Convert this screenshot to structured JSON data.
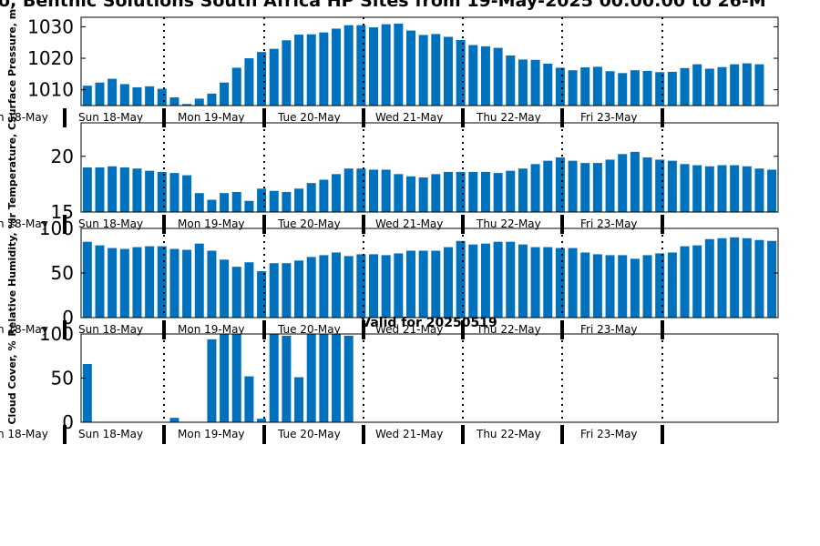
{
  "chart_data": {
    "title": "o, Benthic Solutions South Africa HP Sites from 19-May-2025 00:00:00 to 26-M",
    "subtitle": "Valid for 20250519",
    "day_labels": [
      "n 18-May",
      "Sun 18-May",
      "Mon 19-May",
      "Tue 20-May",
      "Wed 21-May",
      "Thu 22-May",
      "Fri 23-May"
    ],
    "bar_color": "#0072bd",
    "panels": [
      {
        "type": "bar",
        "ylabel": "Surface Pressure, m",
        "ylim": [
          1005,
          1033
        ],
        "yticks": [
          1010,
          1020,
          1030
        ],
        "values": [
          1011.3,
          1012.3,
          1013.5,
          1011.8,
          1010.8,
          1011.1,
          1010.3,
          1007.6,
          1005.5,
          1007.2,
          1008.8,
          1012.3,
          1017.0,
          1020.0,
          1022.0,
          1023.0,
          1025.7,
          1027.5,
          1027.6,
          1028.2,
          1029.4,
          1030.5,
          1030.5,
          1029.8,
          1030.8,
          1031.0,
          1028.8,
          1027.4,
          1027.7,
          1026.8,
          1025.8,
          1024.2,
          1023.8,
          1023.3,
          1020.9,
          1019.6,
          1019.5,
          1018.3,
          1017.0,
          1016.2,
          1017.1,
          1017.3,
          1015.9,
          1015.3,
          1016.2,
          1016.0,
          1015.6,
          1015.7,
          1016.9,
          1018.1,
          1016.7,
          1017.2,
          1018.1,
          1018.4,
          1018.1
        ]
      },
      {
        "type": "bar",
        "ylabel": "ir Temperature, C",
        "ylim": [
          15,
          23
        ],
        "yticks": [
          15,
          20
        ],
        "values": [
          19.0,
          19.0,
          19.1,
          19.0,
          18.9,
          18.7,
          18.6,
          18.5,
          18.3,
          16.7,
          16.1,
          16.7,
          16.8,
          16.0,
          17.1,
          16.9,
          16.8,
          17.1,
          17.6,
          17.9,
          18.4,
          18.9,
          18.9,
          18.8,
          18.8,
          18.4,
          18.2,
          18.1,
          18.4,
          18.6,
          18.6,
          18.6,
          18.6,
          18.5,
          18.7,
          18.9,
          19.3,
          19.6,
          19.9,
          19.6,
          19.4,
          19.4,
          19.7,
          20.2,
          20.4,
          19.9,
          19.7,
          19.6,
          19.3,
          19.2,
          19.1,
          19.2,
          19.2,
          19.1,
          18.9,
          18.8
        ]
      },
      {
        "type": "bar",
        "ylabel": "Relative Humidity, %",
        "ylim": [
          0,
          100
        ],
        "yticks": [
          0,
          50,
          100
        ],
        "values": [
          85,
          81,
          78,
          77,
          79,
          80,
          80,
          77,
          76,
          83,
          75,
          65,
          57,
          62,
          52,
          61,
          61,
          64,
          68,
          70,
          73,
          69,
          71,
          71,
          70,
          72,
          75,
          75,
          75,
          79,
          86,
          82,
          83,
          85,
          85,
          82,
          79,
          79,
          78,
          78,
          73,
          71,
          70,
          70,
          66,
          70,
          72,
          73,
          80,
          81,
          88,
          89,
          90,
          89,
          87,
          86
        ]
      },
      {
        "type": "bar",
        "ylabel": "Cloud Cover, %",
        "ylim": [
          0,
          100
        ],
        "yticks": [
          0,
          50,
          100
        ],
        "values": [
          66,
          0,
          0,
          0,
          0,
          0,
          0,
          5,
          0,
          0,
          94,
          100,
          100,
          52,
          4,
          100,
          98,
          51,
          100,
          100,
          100,
          98
        ]
      }
    ]
  }
}
